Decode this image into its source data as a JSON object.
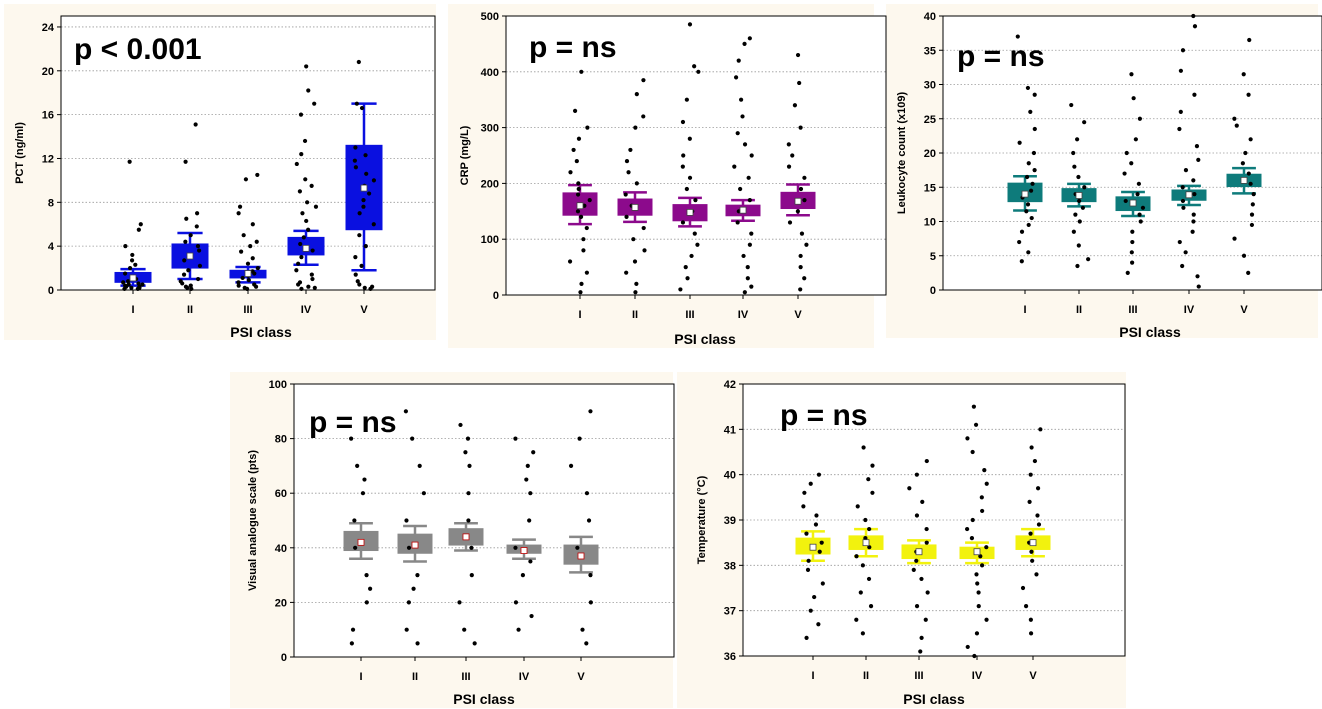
{
  "chart_data": [
    {
      "type": "box",
      "id": "pct",
      "p_value_label": "p < 0.001",
      "xlabel": "PSI class",
      "ylabel": "PCT (ng/ml)",
      "categories": [
        "I",
        "II",
        "III",
        "IV",
        "V"
      ],
      "ylim": [
        0,
        25
      ],
      "yticks": [
        0,
        4,
        8,
        12,
        16,
        20,
        24
      ],
      "box_color": "#0a10e0",
      "grid": true,
      "boxes": [
        {
          "median": 1.1,
          "q1": 0.7,
          "q3": 1.6,
          "whisker_low": 0.4,
          "whisker_high": 1.9
        },
        {
          "median": 3.1,
          "q1": 2.0,
          "q3": 4.2,
          "whisker_low": 1.0,
          "whisker_high": 5.2
        },
        {
          "median": 1.5,
          "q1": 1.1,
          "q3": 1.8,
          "whisker_low": 0.7,
          "whisker_high": 2.1
        },
        {
          "median": 3.8,
          "q1": 3.2,
          "q3": 4.8,
          "whisker_low": 2.3,
          "whisker_high": 5.4
        },
        {
          "median": 9.3,
          "q1": 5.5,
          "q3": 13.2,
          "whisker_low": 1.8,
          "whisker_high": 17.0
        }
      ],
      "points": [
        [
          0.1,
          0.1,
          0.2,
          0.2,
          0.3,
          0.3,
          0.4,
          0.5,
          0.5,
          0.6,
          0.7,
          0.8,
          1.0,
          1.2,
          1.5,
          2.0,
          2.3,
          2.7,
          3.2,
          4.0,
          5.5,
          6.0,
          11.7
        ],
        [
          0.1,
          0.2,
          0.3,
          0.4,
          0.6,
          0.8,
          1.0,
          1.4,
          1.8,
          2.2,
          2.7,
          3.2,
          3.6,
          4.0,
          4.4,
          5.0,
          5.8,
          6.5,
          7.0,
          11.7,
          15.1
        ],
        [
          0.1,
          0.2,
          0.3,
          0.4,
          0.5,
          0.7,
          0.9,
          1.1,
          1.3,
          1.5,
          1.7,
          2.0,
          2.4,
          2.9,
          3.5,
          4.0,
          4.4,
          5.0,
          6.0,
          7.0,
          7.6,
          10.1,
          10.5
        ],
        [
          0.1,
          0.2,
          0.3,
          0.5,
          0.7,
          1.0,
          1.4,
          1.8,
          2.4,
          3.0,
          3.6,
          4.2,
          4.8,
          5.5,
          6.3,
          7.0,
          7.6,
          8.0,
          9.0,
          9.5,
          10.1,
          11.5,
          12.4,
          13.6,
          16.0,
          17.0,
          18.2,
          20.4
        ],
        [
          0.1,
          0.2,
          0.3,
          0.5,
          0.8,
          1.4,
          2.2,
          3.0,
          4.0,
          5.0,
          6.0,
          7.0,
          7.6,
          8.2,
          8.8,
          9.5,
          10.0,
          10.6,
          11.2,
          11.8,
          12.3,
          13.0,
          16.6,
          17.0,
          20.8
        ]
      ]
    },
    {
      "type": "box",
      "id": "crp",
      "p_value_label": "p = ns",
      "xlabel": "PSI class",
      "ylabel": "CRP (mg/L)",
      "categories": [
        "I",
        "II",
        "III",
        "IV",
        "V"
      ],
      "ylim": [
        0,
        500
      ],
      "yticks": [
        0,
        100,
        200,
        300,
        400,
        500
      ],
      "box_color": "#8c0a8c",
      "grid": true,
      "boxes": [
        {
          "median": 160,
          "q1": 143,
          "q3": 183,
          "whisker_low": 127,
          "whisker_high": 197
        },
        {
          "median": 157,
          "q1": 143,
          "q3": 172,
          "whisker_low": 131,
          "whisker_high": 184
        },
        {
          "median": 148,
          "q1": 133,
          "q3": 162,
          "whisker_low": 123,
          "whisker_high": 174
        },
        {
          "median": 152,
          "q1": 142,
          "q3": 161,
          "whisker_low": 133,
          "whisker_high": 170
        },
        {
          "median": 168,
          "q1": 155,
          "q3": 184,
          "whisker_low": 143,
          "whisker_high": 198
        }
      ],
      "points": [
        [
          5,
          20,
          40,
          60,
          80,
          100,
          120,
          140,
          150,
          160,
          170,
          180,
          190,
          200,
          220,
          240,
          260,
          280,
          300,
          330,
          400
        ],
        [
          5,
          20,
          40,
          60,
          80,
          100,
          120,
          140,
          160,
          180,
          200,
          220,
          240,
          260,
          300,
          320,
          360,
          385
        ],
        [
          10,
          30,
          50,
          70,
          90,
          110,
          130,
          150,
          170,
          190,
          210,
          230,
          250,
          280,
          310,
          350,
          400,
          410,
          485
        ],
        [
          5,
          15,
          30,
          50,
          70,
          90,
          110,
          130,
          150,
          170,
          190,
          210,
          230,
          250,
          270,
          290,
          320,
          350,
          390,
          420,
          450,
          460
        ],
        [
          10,
          30,
          50,
          70,
          90,
          110,
          130,
          150,
          170,
          190,
          210,
          230,
          250,
          270,
          300,
          340,
          380,
          430
        ]
      ]
    },
    {
      "type": "box",
      "id": "leuko",
      "p_value_label": "p = ns",
      "xlabel": "PSI class",
      "ylabel": "Leukocyte count (x109)",
      "categories": [
        "I",
        "II",
        "III",
        "IV",
        "V"
      ],
      "ylim": [
        0,
        40
      ],
      "yticks": [
        0,
        5,
        10,
        15,
        20,
        25,
        30,
        35,
        40
      ],
      "box_color": "#0e7b7b",
      "grid": true,
      "boxes": [
        {
          "median": 14.0,
          "q1": 12.9,
          "q3": 15.6,
          "whisker_low": 11.6,
          "whisker_high": 16.6
        },
        {
          "median": 13.8,
          "q1": 12.9,
          "q3": 14.8,
          "whisker_low": 12.2,
          "whisker_high": 15.5
        },
        {
          "median": 12.7,
          "q1": 11.6,
          "q3": 13.6,
          "whisker_low": 10.8,
          "whisker_high": 14.3
        },
        {
          "median": 13.9,
          "q1": 13.1,
          "q3": 14.6,
          "whisker_low": 12.4,
          "whisker_high": 15.2
        },
        {
          "median": 16.0,
          "q1": 15.1,
          "q3": 16.9,
          "whisker_low": 14.1,
          "whisker_high": 17.8
        }
      ],
      "points": [
        [
          4.2,
          5.5,
          7.0,
          8.5,
          9.5,
          10.5,
          11.5,
          12.5,
          13.5,
          14.5,
          15.5,
          16.5,
          17.5,
          18.5,
          20.0,
          21.5,
          23.5,
          26.0,
          28.5,
          29.5,
          37.0
        ],
        [
          3.5,
          4.5,
          6.5,
          8.5,
          10.0,
          11.0,
          12.0,
          13.0,
          14.0,
          15.0,
          16.5,
          18.0,
          20.0,
          22.0,
          24.5,
          27.0
        ],
        [
          2.5,
          4.0,
          5.5,
          7.0,
          8.5,
          10.0,
          11.0,
          12.0,
          13.0,
          14.0,
          15.5,
          17.0,
          18.5,
          20.0,
          22.0,
          25.0,
          28.0,
          31.5
        ],
        [
          0.5,
          2.0,
          3.5,
          5.5,
          7.0,
          8.5,
          10.0,
          11.0,
          12.0,
          13.0,
          14.0,
          15.0,
          16.0,
          17.5,
          19.0,
          21.0,
          23.5,
          26.0,
          28.5,
          32.0,
          35.0,
          38.5,
          40.0
        ],
        [
          2.5,
          5.0,
          7.5,
          9.5,
          11.0,
          12.5,
          14.0,
          15.5,
          17.0,
          18.5,
          20.0,
          22.0,
          24.0,
          25.0,
          28.5,
          31.5,
          36.5
        ]
      ]
    },
    {
      "type": "box",
      "id": "vas",
      "p_value_label": "p = ns",
      "xlabel": "PSI class",
      "ylabel": "Visual analogue scale (pts)",
      "categories": [
        "I",
        "II",
        "III",
        "IV",
        "V"
      ],
      "ylim": [
        0,
        100
      ],
      "yticks": [
        0,
        20,
        40,
        60,
        80,
        100
      ],
      "box_color": "#888888",
      "grid": true,
      "boxes": [
        {
          "median": 42,
          "q1": 39,
          "q3": 46,
          "whisker_low": 36,
          "whisker_high": 49
        },
        {
          "median": 41,
          "q1": 38,
          "q3": 45,
          "whisker_low": 35,
          "whisker_high": 48
        },
        {
          "median": 44,
          "q1": 41,
          "q3": 47,
          "whisker_low": 39,
          "whisker_high": 49
        },
        {
          "median": 39,
          "q1": 38,
          "q3": 41,
          "whisker_low": 36,
          "whisker_high": 43
        },
        {
          "median": 37,
          "q1": 34,
          "q3": 41,
          "whisker_low": 31,
          "whisker_high": 44
        }
      ],
      "points": [
        [
          5,
          10,
          20,
          25,
          30,
          40,
          50,
          60,
          65,
          70,
          80
        ],
        [
          5,
          10,
          20,
          25,
          30,
          40,
          50,
          60,
          70,
          80,
          90
        ],
        [
          5,
          10,
          20,
          30,
          40,
          50,
          60,
          70,
          75,
          80,
          85
        ],
        [
          10,
          15,
          20,
          30,
          35,
          40,
          50,
          60,
          65,
          70,
          75,
          80
        ],
        [
          5,
          10,
          20,
          30,
          40,
          50,
          60,
          70,
          80,
          90
        ]
      ]
    },
    {
      "type": "box",
      "id": "temp",
      "p_value_label": "p = ns",
      "xlabel": "PSI class",
      "ylabel": "Temperature (°C)",
      "categories": [
        "I",
        "II",
        "III",
        "IV",
        "V"
      ],
      "ylim": [
        36,
        42
      ],
      "yticks": [
        36,
        37,
        38,
        39,
        40,
        41,
        42
      ],
      "box_color": "#f2f20e",
      "grid": true,
      "boxes": [
        {
          "median": 38.4,
          "q1": 38.25,
          "q3": 38.6,
          "whisker_low": 38.1,
          "whisker_high": 38.75
        },
        {
          "median": 38.5,
          "q1": 38.35,
          "q3": 38.65,
          "whisker_low": 38.2,
          "whisker_high": 38.8
        },
        {
          "median": 38.3,
          "q1": 38.15,
          "q3": 38.45,
          "whisker_low": 38.05,
          "whisker_high": 38.55
        },
        {
          "median": 38.3,
          "q1": 38.15,
          "q3": 38.4,
          "whisker_low": 38.05,
          "whisker_high": 38.5
        },
        {
          "median": 38.5,
          "q1": 38.35,
          "q3": 38.65,
          "whisker_low": 38.2,
          "whisker_high": 38.8
        }
      ],
      "points": [
        [
          36.4,
          36.7,
          37.0,
          37.3,
          37.6,
          37.9,
          38.1,
          38.3,
          38.5,
          38.7,
          38.9,
          39.1,
          39.3,
          39.6,
          39.8,
          40.0
        ],
        [
          36.5,
          36.8,
          37.1,
          37.4,
          37.7,
          38.0,
          38.2,
          38.4,
          38.6,
          38.8,
          39.0,
          39.3,
          39.6,
          39.9,
          40.2,
          40.6
        ],
        [
          36.1,
          36.4,
          36.8,
          37.1,
          37.4,
          37.7,
          37.9,
          38.1,
          38.3,
          38.5,
          38.8,
          39.1,
          39.4,
          39.7,
          40.0,
          40.3
        ],
        [
          36.0,
          36.2,
          36.5,
          36.8,
          37.1,
          37.4,
          37.6,
          37.8,
          38.0,
          38.2,
          38.4,
          38.6,
          38.8,
          39.0,
          39.2,
          39.5,
          39.8,
          40.1,
          40.5,
          40.8,
          41.1,
          41.5
        ],
        [
          36.5,
          36.8,
          37.1,
          37.5,
          37.8,
          38.1,
          38.3,
          38.5,
          38.7,
          38.9,
          39.1,
          39.4,
          39.7,
          40.0,
          40.3,
          40.6,
          41.0
        ]
      ]
    }
  ]
}
